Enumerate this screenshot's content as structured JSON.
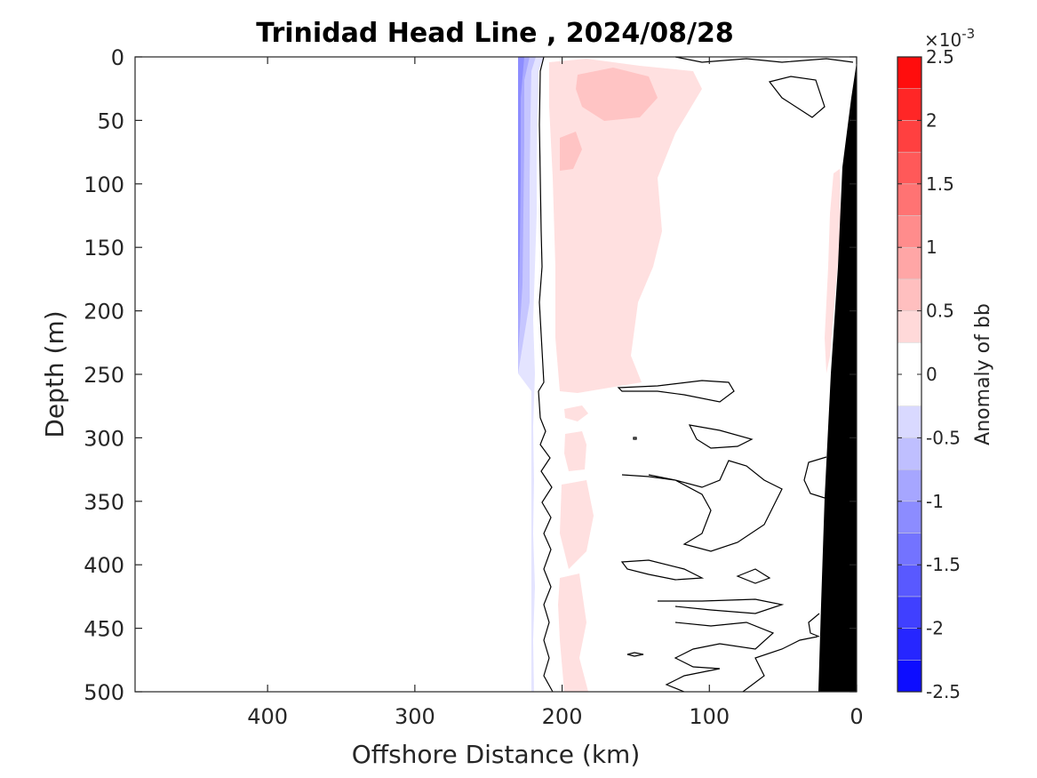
{
  "chart_data": {
    "type": "heatmap",
    "title": "Trinidad Head Line , 2024/08/28",
    "xlabel": "Offshore Distance (km)",
    "ylabel": "Depth (m)",
    "xlim": [
      490,
      0
    ],
    "ylim": [
      0,
      500
    ],
    "x_reversed": true,
    "y_reversed": true,
    "x_ticks": [
      400,
      300,
      200,
      100,
      0
    ],
    "y_ticks": [
      0,
      50,
      100,
      150,
      200,
      250,
      300,
      350,
      400,
      450,
      500
    ],
    "colorbar": {
      "label": "Anomaly of bb",
      "exponent_label": "×10",
      "exponent": "-3",
      "range": [
        -2.5,
        2.5
      ],
      "tick_labels": [
        "2.5",
        "2",
        "1.5",
        "1",
        "0.5",
        "0",
        "-0.5",
        "-1",
        "-1.5",
        "-2",
        "-2.5"
      ],
      "tick_values": [
        2.5,
        2,
        1.5,
        1,
        0.5,
        0,
        -0.5,
        -1,
        -1.5,
        -2,
        -2.5
      ],
      "levels": [
        -2.5,
        -2.25,
        -2.0,
        -1.75,
        -1.5,
        -1.25,
        -1.0,
        -0.75,
        -0.5,
        -0.25,
        0.25,
        0.5,
        0.75,
        1.0,
        1.25,
        1.5,
        1.75,
        2.0,
        2.25,
        2.5
      ],
      "colormap": "blue-white-red"
    },
    "data_extent_km": [
      230,
      0
    ],
    "anomaly_regions": [
      {
        "name": "negative anomaly near offshore edge",
        "x_range_km": [
          230,
          215
        ],
        "depth_range_m": [
          0,
          500
        ],
        "min_value": -1.25
      },
      {
        "name": "positive anomaly band",
        "x_range_km": [
          210,
          130
        ],
        "depth_range_m": [
          0,
          260
        ],
        "value": 0.5
      },
      {
        "name": "positive anomaly core",
        "x_range_km": [
          180,
          140
        ],
        "depth_range_m": [
          10,
          50
        ],
        "value": 0.75
      },
      {
        "name": "positive anomaly patches at depth",
        "x_range_km": [
          200,
          180
        ],
        "depth_range_m": [
          270,
          500
        ],
        "value": 0.5
      },
      {
        "name": "positive anomaly near shelf",
        "x_range_km": [
          25,
          15
        ],
        "depth_range_m": [
          100,
          420
        ],
        "value": 0.5
      }
    ],
    "bathymetry": {
      "color": "#000000",
      "description": "seafloor / shelf mask near coast"
    },
    "grid": false
  }
}
